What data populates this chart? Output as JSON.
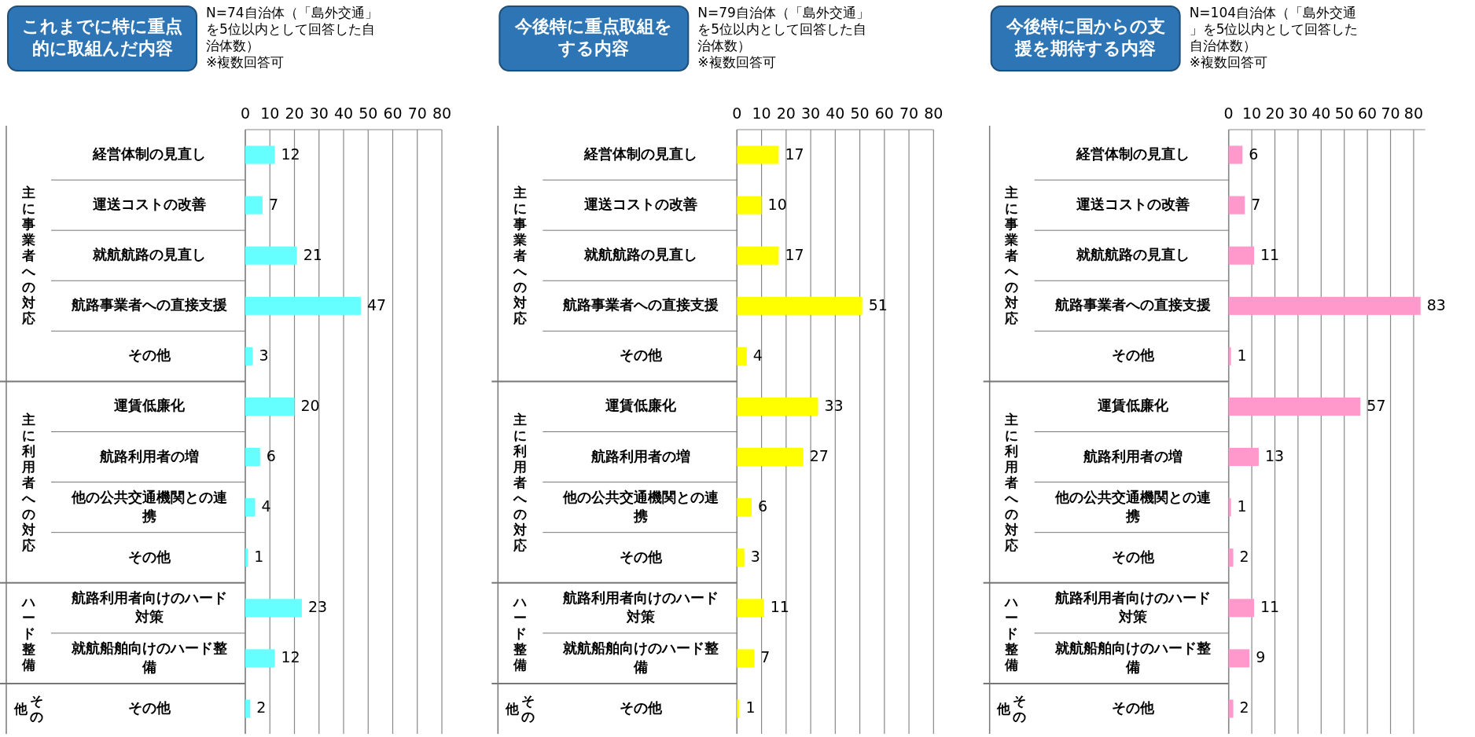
{
  "chart_data": [
    {
      "type": "bar",
      "orientation": "horizontal",
      "title": "これまでに特に重点的に取組んだ内容",
      "subtitle": "N=74自治体（「島外交通」を5位以内として回答した自治体数）\n※複数回答可",
      "categories": [
        "経営体制の見直し",
        "運送コストの改善",
        "就航航路の見直し",
        "航路事業者への直接支援",
        "その他",
        "運賃低廉化",
        "航路利用者の増",
        "他の公共交通機関との連携",
        "その他",
        "航路利用者向けのハード対策",
        "就航船舶向けのハード整備",
        "その他"
      ],
      "values": [
        12,
        7,
        21,
        47,
        3,
        20,
        6,
        4,
        1,
        23,
        12,
        2
      ],
      "color": "#66ffff",
      "xlim": [
        0,
        80
      ],
      "xticks": [
        0,
        10,
        20,
        30,
        40,
        50,
        60,
        70,
        80
      ],
      "grid": "x",
      "data_labels": true,
      "annotations": [
        "主に事業者への対応",
        "主に利用者への対応",
        "ハード整備",
        "その他"
      ]
    },
    {
      "type": "bar",
      "orientation": "horizontal",
      "title": "今後特に重点取組をする内容",
      "subtitle": "N=79自治体（「島外交通」を5位以内として回答した自治体数）\n※複数回答可",
      "categories": [
        "経営体制の見直し",
        "運送コストの改善",
        "就航航路の見直し",
        "航路事業者への直接支援",
        "その他",
        "運賃低廉化",
        "航路利用者の増",
        "他の公共交通機関との連携",
        "その他",
        "航路利用者向けのハード対策",
        "就航船舶向けのハード整備",
        "その他"
      ],
      "values": [
        17,
        10,
        17,
        51,
        4,
        33,
        27,
        6,
        3,
        11,
        7,
        1
      ],
      "color": "#ffff00",
      "xlim": [
        0,
        80
      ],
      "xticks": [
        0,
        10,
        20,
        30,
        40,
        50,
        60,
        70,
        80
      ],
      "grid": "x",
      "data_labels": true,
      "annotations": [
        "主に事業者への対応",
        "主に利用者への対応",
        "ハード整備",
        "その他"
      ]
    },
    {
      "type": "bar",
      "orientation": "horizontal",
      "title": "今後特に国からの支援を期待する内容",
      "subtitle": "N=104自治体（「島外交通」を5位以内として回答した自治体数）\n※複数回答可",
      "categories": [
        "経営体制の見直し",
        "運送コストの改善",
        "就航航路の見直し",
        "航路事業者への直接支援",
        "その他",
        "運賃低廉化",
        "航路利用者の増",
        "他の公共交通機関との連携",
        "その他",
        "航路利用者向けのハード対策",
        "就航船舶向けのハード整備",
        "その他"
      ],
      "values": [
        6,
        7,
        11,
        83,
        1,
        57,
        13,
        1,
        2,
        11,
        9,
        2
      ],
      "color": "#ff99cc",
      "xlim": [
        0,
        85
      ],
      "xticks": [
        0,
        10,
        20,
        30,
        40,
        50,
        60,
        70,
        80
      ],
      "grid": "x",
      "data_labels": true,
      "annotations": [
        "主に事業者への対応",
        "主に利用者への対応",
        "ハード整備",
        "その他"
      ]
    }
  ]
}
